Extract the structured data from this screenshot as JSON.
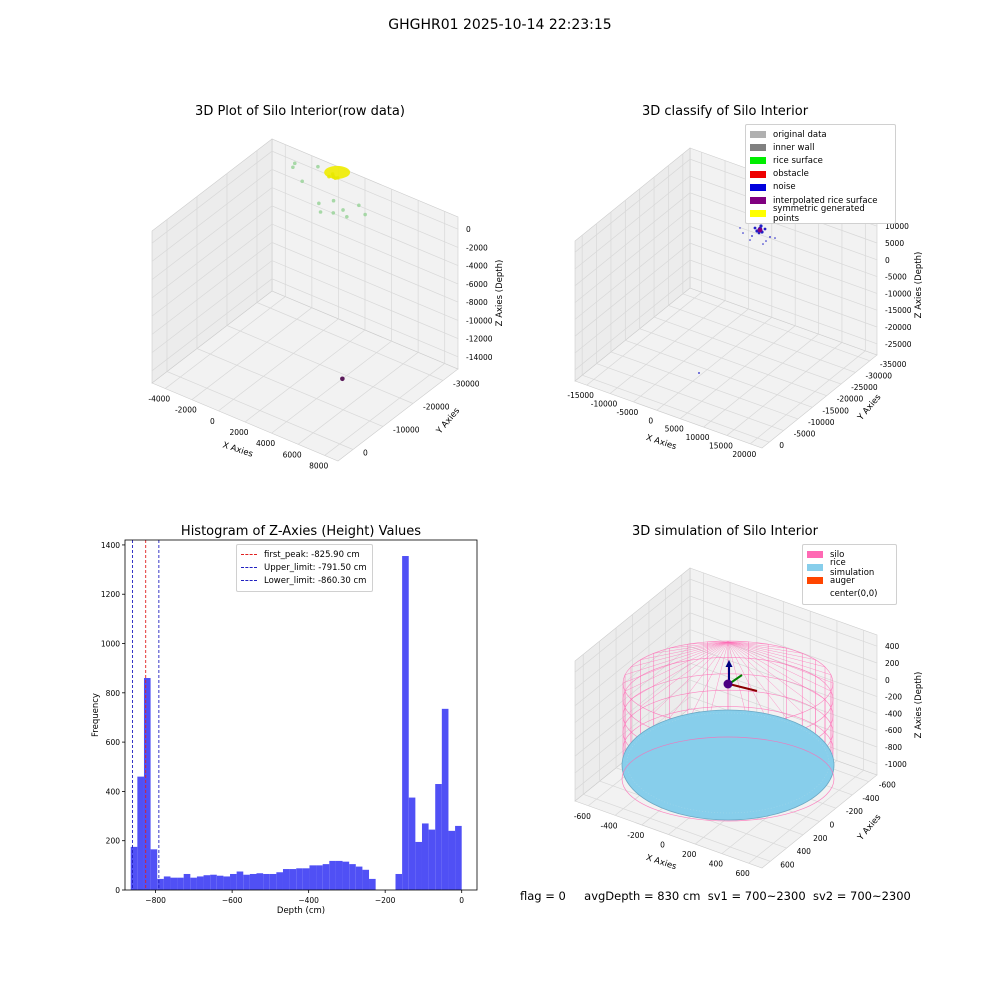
{
  "suptitle": "GHGHR01 2025-10-14 22:23:15",
  "footer": {
    "flag": "flag = 0",
    "avg_depth": "avgDepth = 830 cm",
    "sv1": "sv1 = 700~2300",
    "sv2": "sv2 = 700~2300"
  },
  "colors": {
    "hist_bar": "#5050f5",
    "first_peak": "#e02020",
    "limits": "#2020c0",
    "silo": "#ff69b4",
    "rice": "#87ceeb",
    "auger": "#ff4500",
    "pane": "#f2f2f2",
    "grid": "#d8d8d8"
  },
  "chart_data": [
    {
      "type": "scatter",
      "title": "3D Plot of Silo Interior(row data)",
      "xlabel": "X Axies",
      "ylabel": "Y Axies",
      "zlabel": "Z Axies (Depth)",
      "x_ticks": [
        "-4000",
        "-2000",
        "0",
        "2000",
        "4000",
        "6000",
        "8000"
      ],
      "y_ticks": [
        "0",
        "-10000",
        "-20000",
        "-30000"
      ],
      "z_ticks": [
        "0",
        "-2000",
        "-4000",
        "-6000",
        "-8000",
        "-10000",
        "-12000",
        "-14000"
      ],
      "xlim": [
        -4500,
        8500
      ],
      "ylim": [
        -36000,
        1000
      ],
      "zlim": [
        -15000,
        500
      ],
      "series": [
        {
          "color": "#e8e800",
          "points": [
            [
              -200,
              -400,
              -350
            ],
            [
              100,
              -300,
              -250
            ],
            [
              300,
              100,
              -300
            ],
            [
              -100,
              300,
              -200
            ],
            [
              0,
              0,
              -280
            ],
            [
              200,
              -200,
              -320
            ]
          ]
        },
        {
          "color": "#9ad49a",
          "points": [
            [
              -2500,
              -800,
              -300
            ],
            [
              -2700,
              -500,
              -900
            ],
            [
              -1800,
              -1600,
              -1500
            ],
            [
              -500,
              -2200,
              -2800
            ],
            [
              300,
              -1200,
              -2300
            ],
            [
              1100,
              -1800,
              -2600
            ],
            [
              600,
              -2600,
              -3000
            ],
            [
              1500,
              -2400,
              -2900
            ],
            [
              -1200,
              600,
              -200
            ],
            [
              2000,
              -900,
              -1800
            ],
            [
              2600,
              -1600,
              -2200
            ],
            [
              -200,
              -3000,
              -3300
            ]
          ]
        },
        {
          "color": "#5a1a5a",
          "points": [
            [
              7900,
              -32000,
              -8000
            ]
          ]
        }
      ]
    },
    {
      "type": "scatter",
      "title": "3D classify of Silo Interior",
      "xlabel": "X Axies",
      "ylabel": "Y Axies",
      "zlabel": "Z Axies (Depth)",
      "x_ticks": [
        "-15000",
        "-10000",
        "-5000",
        "0",
        "5000",
        "10000",
        "15000",
        "20000"
      ],
      "y_ticks": [
        "0",
        "-5000",
        "-10000",
        "-15000",
        "-20000",
        "-25000",
        "-30000",
        "-35000"
      ],
      "z_ticks": [
        "10000",
        "5000",
        "0",
        "-5000",
        "-10000",
        "-15000",
        "-20000",
        "-25000"
      ],
      "legend": [
        "original data",
        "inner wall",
        "rice surface",
        "obstacle",
        "noise",
        "interpolated rice surface",
        "symmetric generated points"
      ],
      "legend_colors": [
        "#b0b0b0",
        "#808080",
        "#00ee00",
        "#ee0000",
        "#0000dd",
        "#800080",
        "#ffff00"
      ]
    },
    {
      "type": "bar",
      "title": "Histogram of Z-Axies (Height) Values",
      "xlabel": "Depth (cm)",
      "ylabel": "Frequency",
      "xlim": [
        -880,
        40
      ],
      "ylim": [
        0,
        1420
      ],
      "x_ticks": [
        -800,
        -600,
        -400,
        -200,
        0
      ],
      "y_ticks": [
        0,
        200,
        400,
        600,
        800,
        1000,
        1200,
        1400
      ],
      "bin_start": -865,
      "bin_width": 17.3,
      "values": [
        175,
        460,
        860,
        165,
        45,
        55,
        50,
        50,
        65,
        50,
        55,
        60,
        62,
        58,
        55,
        65,
        75,
        62,
        65,
        68,
        65,
        65,
        72,
        85,
        85,
        88,
        88,
        100,
        100,
        105,
        118,
        118,
        115,
        105,
        95,
        82,
        45,
        0,
        0,
        0,
        65,
        1355,
        375,
        195,
        270,
        245,
        430,
        735,
        240,
        260
      ],
      "vlines": [
        {
          "label": "first_peak: -825.90 cm",
          "x": -825.9
        },
        {
          "label": "Upper_limit: -791.50 cm",
          "x": -791.5
        },
        {
          "label": "Lower_limit: -860.30 cm",
          "x": -860.3
        }
      ]
    },
    {
      "type": "surface",
      "title": "3D simulation of Silo Interior",
      "xlabel": "X Axies",
      "ylabel": "Y Axies",
      "zlabel": "Z Axies (Depth)",
      "x_ticks": [
        "-600",
        "-400",
        "-200",
        "0",
        "200",
        "400",
        "600"
      ],
      "y_ticks": [
        "600",
        "400",
        "200",
        "0",
        "-200",
        "-400",
        "-600"
      ],
      "z_ticks": [
        "400",
        "200",
        "0",
        "-200",
        "-400",
        "-600",
        "-800",
        "-1000"
      ],
      "legend": [
        "silo",
        "rice simulation",
        "auger",
        "center(0,0)"
      ]
    }
  ]
}
